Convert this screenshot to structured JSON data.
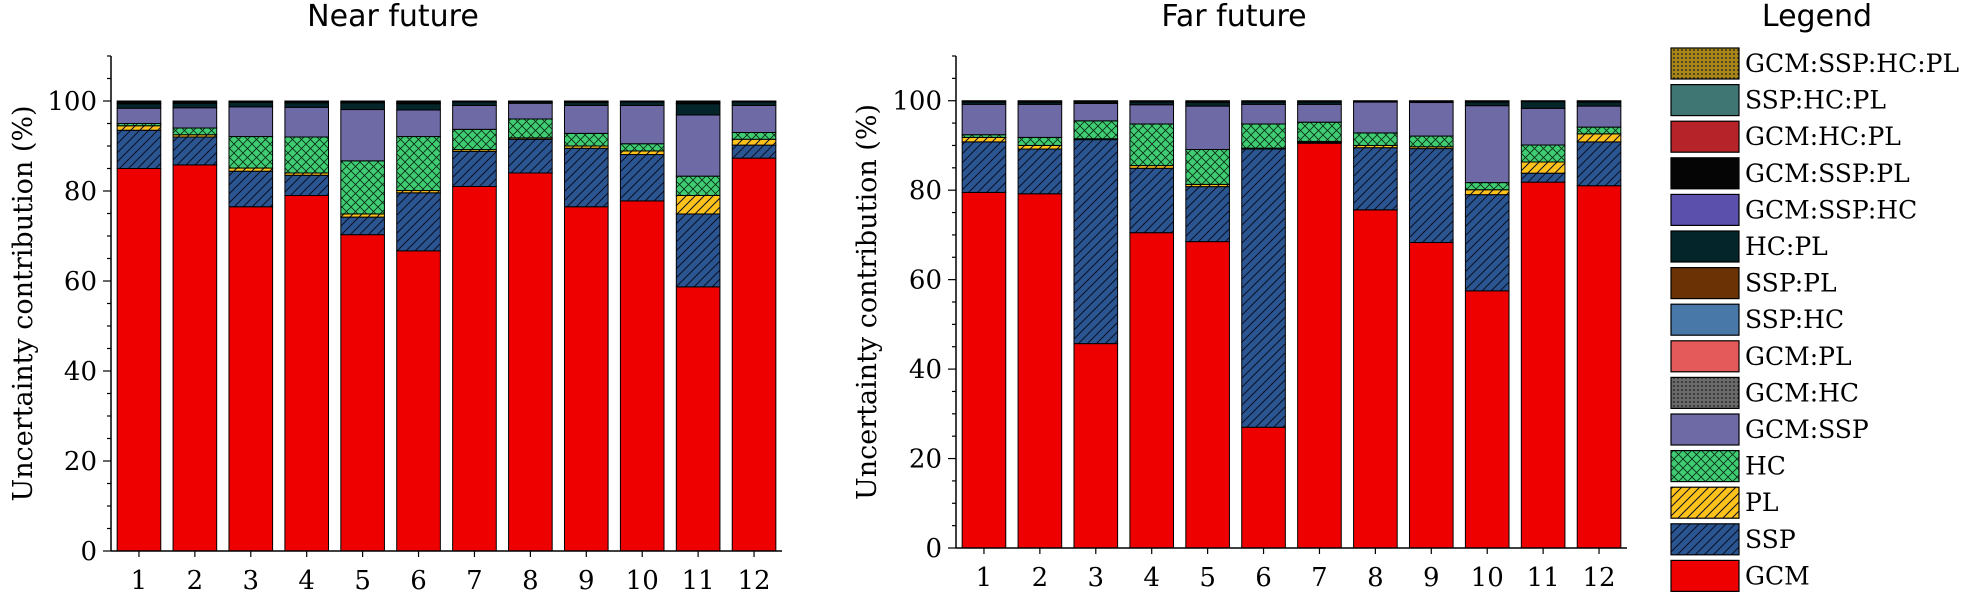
{
  "legend_title": "Legend",
  "legend": [
    {
      "key": "GCM:SSP:HC:PL",
      "color": "#a8861a",
      "pattern": "dots"
    },
    {
      "key": "SSP:HC:PL",
      "color": "#3f7572",
      "pattern": "none"
    },
    {
      "key": "GCM:HC:PL",
      "color": "#b62429",
      "pattern": "none"
    },
    {
      "key": "GCM:SSP:PL",
      "color": "#050505",
      "pattern": "none"
    },
    {
      "key": "GCM:SSP:HC",
      "color": "#5b51ad",
      "pattern": "none"
    },
    {
      "key": "HC:PL",
      "color": "#04262a",
      "pattern": "none"
    },
    {
      "key": "SSP:PL",
      "color": "#6b3205",
      "pattern": "none"
    },
    {
      "key": "SSP:HC",
      "color": "#4878a8",
      "pattern": "none"
    },
    {
      "key": "GCM:PL",
      "color": "#e45a5a",
      "pattern": "none"
    },
    {
      "key": "GCM:HC",
      "color": "#6a6a6a",
      "pattern": "dots"
    },
    {
      "key": "GCM:SSP",
      "color": "#6e6aa6",
      "pattern": "none"
    },
    {
      "key": "HC",
      "color": "#3fcc73",
      "pattern": "cross"
    },
    {
      "key": "PL",
      "color": "#ffc21a",
      "pattern": "diag"
    },
    {
      "key": "SSP",
      "color": "#2b5591",
      "pattern": "diag"
    },
    {
      "key": "GCM",
      "color": "#ee0000",
      "pattern": "none"
    }
  ],
  "chart_data": [
    {
      "type": "bar",
      "title": "Near future",
      "ylabel": "Uncertainty contribution (%)",
      "ylim": [
        0,
        110
      ],
      "yticks": [
        0,
        20,
        40,
        60,
        80,
        100
      ],
      "categories": [
        "1",
        "2",
        "3",
        "4",
        "5",
        "6",
        "7",
        "8",
        "9",
        "10",
        "11",
        "12"
      ],
      "stacked": true,
      "series": [
        {
          "name": "GCM",
          "values": [
            85,
            85.8,
            76.5,
            79,
            70.3,
            66.7,
            81,
            84,
            76.5,
            77.8,
            58.7,
            87.3
          ]
        },
        {
          "name": "SSP",
          "values": [
            8.5,
            6.2,
            7.9,
            4.5,
            3.9,
            12.9,
            7.8,
            7.5,
            13,
            10.3,
            16.2,
            2.9
          ]
        },
        {
          "name": "PL",
          "values": [
            1,
            0.5,
            0.7,
            0.5,
            0.7,
            0.5,
            0.4,
            0.3,
            0.5,
            0.8,
            4.1,
            1.3
          ]
        },
        {
          "name": "HC",
          "values": [
            0.5,
            1.5,
            7,
            8,
            11.8,
            12,
            4.5,
            4.2,
            2.8,
            1.6,
            4.3,
            1.5
          ]
        },
        {
          "name": "GCM:SSP",
          "values": [
            3.4,
            4.5,
            6.6,
            6.6,
            11.4,
            5.9,
            5.3,
            3.5,
            6.2,
            8.5,
            13.6,
            6
          ]
        },
        {
          "name": "HC:PL",
          "values": [
            1,
            1,
            1,
            1,
            1.5,
            1.4,
            0.8,
            0.3,
            0.7,
            0.8,
            2.5,
            0.8
          ]
        },
        {
          "name": "GCM:SSP:PL",
          "values": [
            0.6,
            0.5,
            0.3,
            0.4,
            0.4,
            0.6,
            0.2,
            0.2,
            0.3,
            0.2,
            0.6,
            0.2
          ]
        }
      ]
    },
    {
      "type": "bar",
      "title": "Far future",
      "ylabel": "Uncertainty contribution (%)",
      "ylim": [
        0,
        110
      ],
      "yticks": [
        0,
        20,
        40,
        60,
        80,
        100
      ],
      "categories": [
        "1",
        "2",
        "3",
        "4",
        "5",
        "6",
        "7",
        "8",
        "9",
        "10",
        "11",
        "12"
      ],
      "stacked": true,
      "series": [
        {
          "name": "GCM",
          "values": [
            79.5,
            79.2,
            45.7,
            70.5,
            68.5,
            27,
            90.5,
            75.6,
            68.3,
            57.5,
            81.8,
            81
          ]
        },
        {
          "name": "SSP",
          "values": [
            11.3,
            10,
            45.6,
            14.4,
            12.3,
            62.2,
            0.2,
            13.9,
            21,
            21.5,
            2,
            9.8
          ]
        },
        {
          "name": "PL",
          "values": [
            1,
            0.8,
            0.2,
            0.6,
            0.5,
            0.2,
            0.2,
            0.5,
            0.4,
            1.1,
            2.5,
            1.8
          ]
        },
        {
          "name": "HC",
          "values": [
            0.6,
            1.8,
            4,
            9.3,
            7.8,
            5.4,
            4.3,
            2.8,
            2.4,
            1.6,
            3.8,
            1.5
          ]
        },
        {
          "name": "GCM:SSP",
          "values": [
            6.8,
            7.4,
            3.9,
            4.3,
            9.7,
            4.4,
            4,
            6.9,
            7.5,
            17.2,
            8.2,
            4.7
          ]
        },
        {
          "name": "HC:PL",
          "values": [
            0.5,
            0.4,
            0.3,
            0.6,
            0.8,
            0.5,
            0.5,
            0.2,
            0.2,
            0.8,
            1.5,
            0.9
          ]
        },
        {
          "name": "GCM:SSP:PL",
          "values": [
            0.3,
            0.4,
            0.3,
            0.3,
            0.4,
            0.3,
            0.3,
            0.1,
            0.2,
            0.3,
            0.2,
            0.3
          ]
        }
      ]
    }
  ]
}
